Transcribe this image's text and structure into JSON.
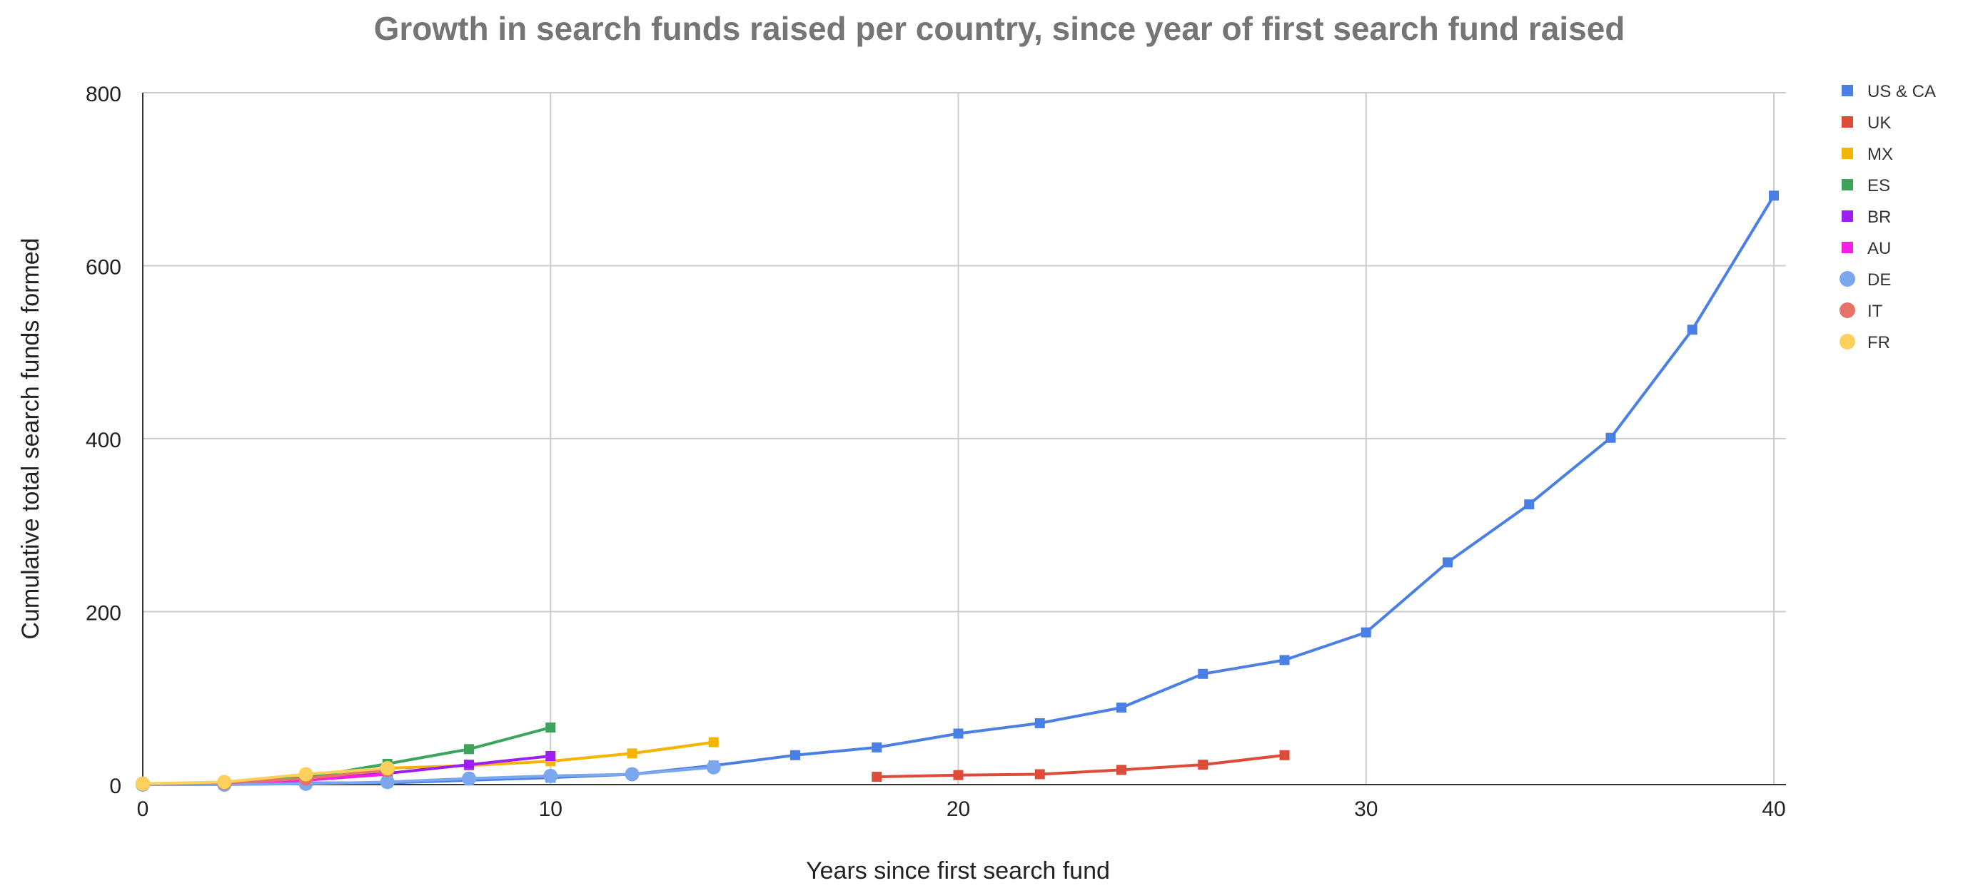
{
  "chart_data": {
    "type": "line",
    "title": "Growth in search funds raised per country, since year of first search fund raised",
    "xlabel": "Years since first search fund",
    "ylabel": "Cumulative total search funds formed",
    "xlim": [
      0,
      40
    ],
    "ylim": [
      0,
      800
    ],
    "x_ticks": [
      "0",
      "10",
      "20",
      "30",
      "40"
    ],
    "y_ticks": [
      "0",
      "200",
      "400",
      "600",
      "800"
    ],
    "x_tick_values": [
      0,
      10,
      20,
      30,
      40
    ],
    "y_tick_values": [
      0,
      200,
      400,
      600,
      800
    ],
    "grid": true,
    "legend_position": "right",
    "series": [
      {
        "name": "US & CA",
        "color": "#4a7fe6",
        "marker": "square",
        "points": [
          [
            0,
            1
          ],
          [
            2,
            1
          ],
          [
            4,
            2
          ],
          [
            6,
            2
          ],
          [
            8,
            5
          ],
          [
            10,
            8
          ],
          [
            12,
            12
          ],
          [
            14,
            22
          ],
          [
            16,
            34
          ],
          [
            18,
            43
          ],
          [
            20,
            59
          ],
          [
            22,
            71
          ],
          [
            24,
            89
          ],
          [
            26,
            128
          ],
          [
            28,
            144
          ],
          [
            30,
            176
          ],
          [
            32,
            257
          ],
          [
            34,
            324
          ],
          [
            36,
            401
          ],
          [
            38,
            526
          ],
          [
            40,
            681
          ]
        ]
      },
      {
        "name": "UK",
        "color": "#dd4b39",
        "marker": "square",
        "points": [
          [
            18,
            9
          ],
          [
            20,
            11
          ],
          [
            22,
            12
          ],
          [
            24,
            17
          ],
          [
            26,
            23
          ],
          [
            28,
            34
          ]
        ]
      },
      {
        "name": "MX",
        "color": "#f4b400",
        "marker": "square",
        "points": [
          [
            0,
            1
          ],
          [
            2,
            2
          ],
          [
            4,
            12
          ],
          [
            6,
            19
          ],
          [
            8,
            22
          ],
          [
            10,
            27
          ],
          [
            12,
            36
          ],
          [
            14,
            49
          ]
        ]
      },
      {
        "name": "ES",
        "color": "#3da35d",
        "marker": "square",
        "points": [
          [
            0,
            1
          ],
          [
            2,
            2
          ],
          [
            4,
            8
          ],
          [
            6,
            24
          ],
          [
            8,
            41
          ],
          [
            10,
            66
          ]
        ]
      },
      {
        "name": "BR",
        "color": "#9b1ff2",
        "marker": "square",
        "points": [
          [
            0,
            1
          ],
          [
            2,
            2
          ],
          [
            4,
            6
          ],
          [
            6,
            13
          ],
          [
            8,
            23
          ],
          [
            10,
            33
          ]
        ]
      },
      {
        "name": "AU",
        "color": "#f41fe0",
        "marker": "square",
        "points": [
          [
            0,
            1
          ],
          [
            2,
            2
          ],
          [
            4,
            5
          ],
          [
            6,
            12
          ]
        ]
      },
      {
        "name": "DE",
        "color": "#7ba7ee",
        "marker": "circle",
        "points": [
          [
            0,
            0
          ],
          [
            2,
            0
          ],
          [
            4,
            1
          ],
          [
            6,
            3
          ],
          [
            8,
            7
          ],
          [
            10,
            10
          ],
          [
            12,
            12
          ],
          [
            14,
            20
          ]
        ]
      },
      {
        "name": "IT",
        "color": "#e57368",
        "marker": "circle",
        "points": [
          [
            0,
            1
          ],
          [
            2,
            2
          ],
          [
            4,
            7
          ],
          [
            6,
            17
          ]
        ]
      },
      {
        "name": "FR",
        "color": "#fcd05a",
        "marker": "circle",
        "points": [
          [
            0,
            1
          ],
          [
            2,
            3
          ],
          [
            4,
            12
          ],
          [
            6,
            19
          ]
        ]
      }
    ]
  }
}
